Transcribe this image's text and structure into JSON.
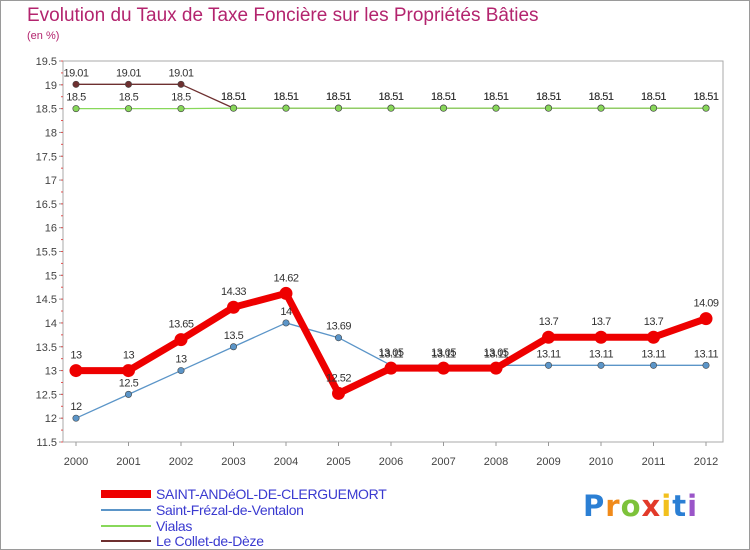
{
  "chart_data": {
    "type": "line",
    "title": "Evolution du Taux de Taxe Foncière sur les Propriétés Bâties",
    "unit_label": "(en %)",
    "xlabel": "",
    "ylabel": "",
    "ylim": [
      11.5,
      19.5
    ],
    "y_ticks": [
      "11.5",
      "12",
      "12.5",
      "13",
      "13.5",
      "14",
      "14.5",
      "15",
      "15.5",
      "16",
      "16.5",
      "17",
      "17.5",
      "18",
      "18.5",
      "19",
      "19.5"
    ],
    "categories": [
      "2000",
      "2001",
      "2002",
      "2003",
      "2004",
      "2005",
      "2006",
      "2007",
      "2008",
      "2009",
      "2010",
      "2011",
      "2012"
    ],
    "legend_position": "bottom-left",
    "series": [
      {
        "name": "SAINT-ANDéOL-DE-CLERGUEMORT",
        "color": "#ee0000",
        "values": [
          13,
          13,
          13.65,
          14.33,
          14.62,
          12.52,
          13.05,
          13.05,
          13.05,
          13.7,
          13.7,
          13.7,
          14.09
        ],
        "labels": [
          "13",
          "13",
          "13.65",
          "14.33",
          "14.62",
          "12.52",
          "13.05",
          "13.05",
          "13.05",
          "13.7",
          "13.7",
          "13.7",
          "14.09"
        ]
      },
      {
        "name": "Saint-Frézal-de-Ventalon",
        "color": "#5b95c8",
        "values": [
          12,
          12.5,
          13,
          13.5,
          14,
          13.69,
          13.11,
          13.11,
          13.11,
          13.11,
          13.11,
          13.11,
          13.11
        ],
        "labels": [
          "12",
          "12.5",
          "13",
          "13.5",
          "14",
          "13.69",
          "13.11",
          "13.11",
          "13.11",
          "13.11",
          "13.11",
          "13.11",
          "13.11"
        ]
      },
      {
        "name": "Vialas",
        "color": "#88d85a",
        "values": [
          18.5,
          18.5,
          18.5,
          18.51,
          18.51,
          18.51,
          18.51,
          18.51,
          18.51,
          18.51,
          18.51,
          18.51,
          18.51
        ],
        "labels": [
          "18.5",
          "18.5",
          "18.5",
          "18.51",
          "18.51",
          "18.51",
          "18.51",
          "18.51",
          "18.51",
          "18.51",
          "18.51",
          "18.51",
          "18.51"
        ]
      },
      {
        "name": "Le Collet-de-Dèze",
        "color": "#6e3030",
        "values": [
          19.01,
          19.01,
          19.01,
          18.51,
          18.51,
          18.51,
          18.51,
          18.51,
          18.51,
          18.51,
          18.51,
          18.51,
          18.51
        ],
        "labels": [
          "19.01",
          "19.01",
          "19.01",
          "18.51",
          "18.51",
          "18.51",
          "18.51",
          "18.51",
          "18.51",
          "18.51",
          "18.51",
          "18.51",
          "18.51"
        ]
      }
    ]
  },
  "logo": {
    "letters": [
      "P",
      "r",
      "o",
      "x",
      "i",
      "t",
      "i"
    ],
    "colors": [
      "#2b7fd4",
      "#f08a1a",
      "#7dc23a",
      "#e23a2a",
      "#f2c01d",
      "#2b7fd4",
      "#9a55c8"
    ]
  }
}
